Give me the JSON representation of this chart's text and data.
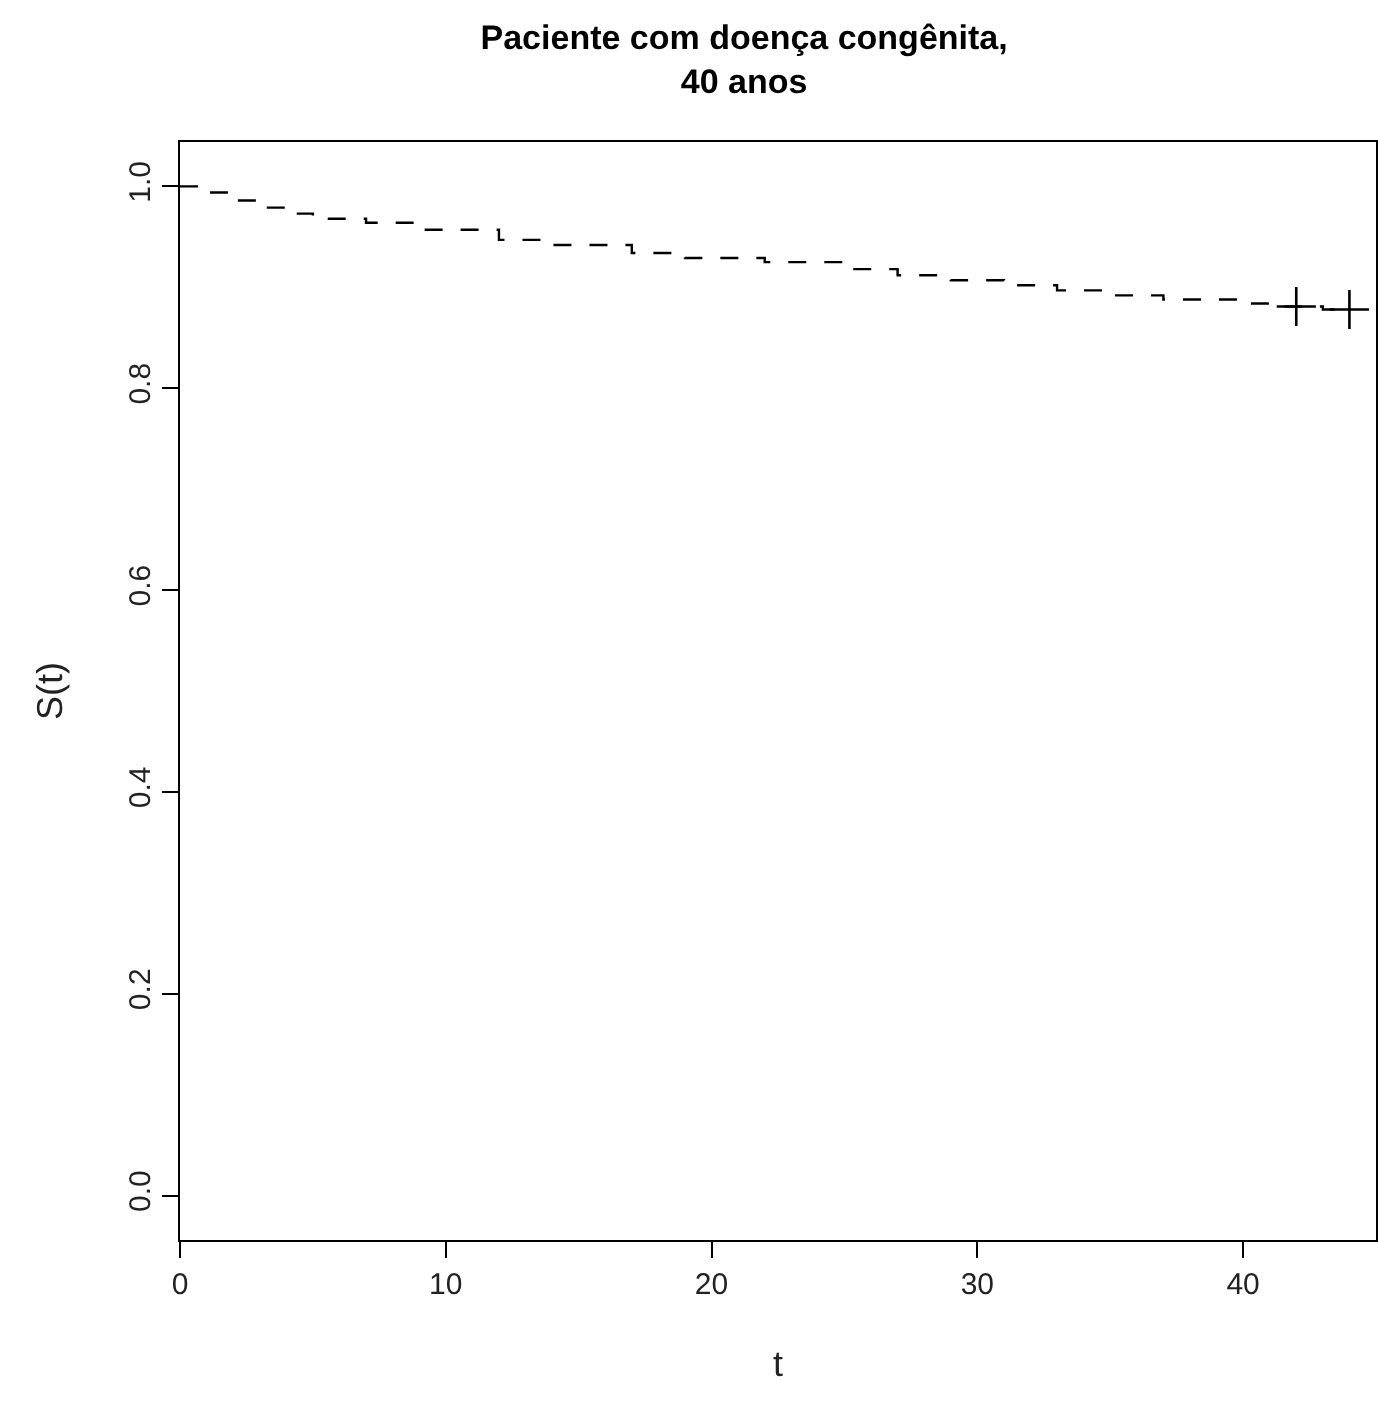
{
  "chart_data": {
    "type": "step",
    "title": "Paciente com doença congênita,\n40 anos",
    "xlabel": "t",
    "ylabel": "S(t)",
    "xlim": [
      0,
      45
    ],
    "xticks": [
      0,
      10,
      20,
      30,
      40
    ],
    "ylim": [
      -0.044,
      1.044
    ],
    "yticks": [
      {
        "value": 0,
        "label": "0.0"
      },
      0.2,
      0.4,
      0.6,
      0.8,
      {
        "value": 1,
        "label": "1.0"
      }
    ],
    "grid": false,
    "series": [
      {
        "color": "#000000",
        "line_style": "dashed",
        "marker": "none",
        "x": [
          0,
          1,
          2,
          3,
          4,
          5,
          7,
          9,
          12,
          14,
          17,
          19,
          22,
          25,
          27,
          29,
          31,
          33,
          35,
          37,
          40,
          41,
          43,
          44
        ],
        "values": [
          1.0,
          0.994,
          0.986,
          0.979,
          0.973,
          0.968,
          0.964,
          0.957,
          0.947,
          0.942,
          0.934,
          0.929,
          0.925,
          0.918,
          0.912,
          0.907,
          0.902,
          0.897,
          0.892,
          0.888,
          0.884,
          0.881,
          0.878,
          0.878
        ]
      },
      {
        "type": "scatter",
        "color": "#000000",
        "marker": "cross",
        "x": [
          42,
          44
        ],
        "values": [
          0.881,
          0.878
        ]
      }
    ]
  }
}
